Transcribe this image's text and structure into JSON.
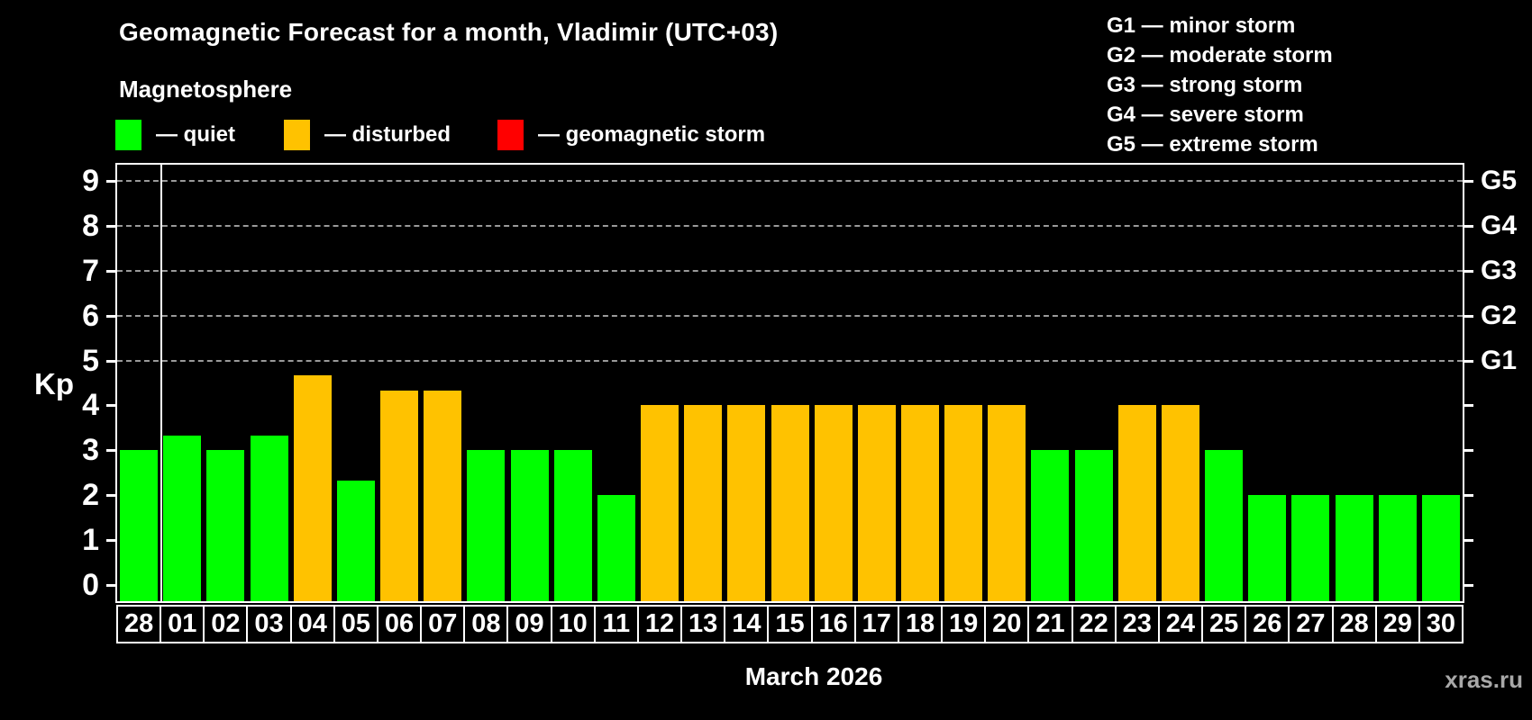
{
  "header": {
    "title": "Geomagnetic Forecast for a month, Vladimir (UTC+03)",
    "subtitle": "Magnetosphere"
  },
  "legend": {
    "items": [
      {
        "key": "quiet",
        "label": "— quiet",
        "color": "#00ff00"
      },
      {
        "key": "disturbed",
        "label": "— disturbed",
        "color": "#ffc200"
      },
      {
        "key": "storm",
        "label": "— geomagnetic storm",
        "color": "#ff0000"
      }
    ]
  },
  "storm_scale_legend": {
    "items": [
      "G1 — minor storm",
      "G2 — moderate storm",
      "G3 — strong storm",
      "G4 — severe storm",
      "G5 — extreme storm"
    ]
  },
  "chart_data": {
    "type": "bar",
    "title": "Geomagnetic Forecast for a month, Vladimir (UTC+03)",
    "xlabel": "March 2026",
    "ylabel": "Kp",
    "ylim": [
      0,
      9
    ],
    "yticks": [
      0,
      1,
      2,
      3,
      4,
      5,
      6,
      7,
      8,
      9
    ],
    "gridlines_at": [
      5,
      6,
      7,
      8,
      9
    ],
    "grid": "dashed, only at storm levels G1-G5",
    "legend_position": "top",
    "right_axis_labels": [
      {
        "kp": 5,
        "label": "G1"
      },
      {
        "kp": 6,
        "label": "G2"
      },
      {
        "kp": 7,
        "label": "G3"
      },
      {
        "kp": 8,
        "label": "G4"
      },
      {
        "kp": 9,
        "label": "G5"
      }
    ],
    "categories": [
      "28",
      "01",
      "02",
      "03",
      "04",
      "05",
      "06",
      "07",
      "08",
      "09",
      "10",
      "11",
      "12",
      "13",
      "14",
      "15",
      "16",
      "17",
      "18",
      "19",
      "20",
      "21",
      "22",
      "23",
      "24",
      "25",
      "26",
      "27",
      "28",
      "29",
      "30"
    ],
    "values": [
      3,
      3.33,
      3,
      3.33,
      4.67,
      2.33,
      4.33,
      4.33,
      3,
      3,
      3,
      2,
      4,
      4,
      4,
      4,
      4,
      4,
      4,
      4,
      4,
      3,
      3,
      4,
      4,
      3,
      2,
      2,
      2,
      2,
      2
    ],
    "statuses": [
      "quiet",
      "quiet",
      "quiet",
      "quiet",
      "disturbed",
      "quiet",
      "disturbed",
      "disturbed",
      "quiet",
      "quiet",
      "quiet",
      "quiet",
      "disturbed",
      "disturbed",
      "disturbed",
      "disturbed",
      "disturbed",
      "disturbed",
      "disturbed",
      "disturbed",
      "disturbed",
      "quiet",
      "quiet",
      "disturbed",
      "disturbed",
      "quiet",
      "quiet",
      "quiet",
      "quiet",
      "quiet",
      "quiet"
    ],
    "status_colors": {
      "quiet": "#00ff00",
      "disturbed": "#ffc200",
      "storm": "#ff0000"
    },
    "month_separator_after_index": 0
  },
  "footer": {
    "xaxis_title": "March 2026",
    "watermark": "xras.ru"
  }
}
